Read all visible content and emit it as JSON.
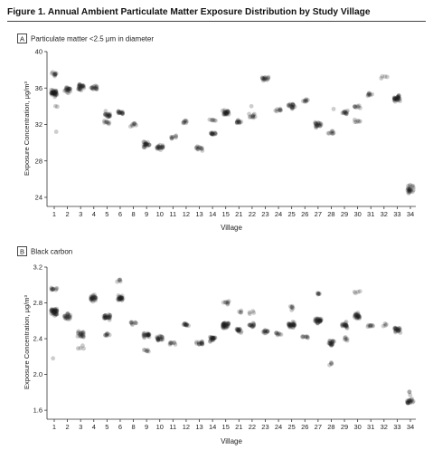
{
  "figure": {
    "title": "Figure 1. Annual Ambient Particulate Matter Exposure Distribution by Study Village"
  },
  "colors": {
    "point": "#1a1a1a",
    "axis": "#333333",
    "panel_badge_border": "#333333"
  },
  "chart_data": [
    {
      "type": "scatter",
      "panel_letter": "A",
      "title": "Particulate matter <2.5 μm in diameter",
      "xlabel": "Village",
      "ylabel": "Exposure Concentration, μg/m³",
      "ylim": [
        23,
        40
      ],
      "yticks": [
        24,
        28,
        32,
        36,
        40
      ],
      "grid": false,
      "categories": [
        "1",
        "2",
        "3",
        "4",
        "5",
        "6",
        "8",
        "9",
        "10",
        "11",
        "12",
        "13",
        "14",
        "15",
        "21",
        "22",
        "23",
        "24",
        "25",
        "26",
        "27",
        "28",
        "29",
        "30",
        "31",
        "32",
        "33",
        "34"
      ],
      "series": [
        {
          "points": [
            [
              {
                "y": 35.5,
                "n": 40
              },
              {
                "y": 37.5,
                "n": 10
              },
              {
                "y": 31.2,
                "n": 1
              },
              {
                "y": 34.0,
                "n": 2
              }
            ],
            [
              {
                "y": 35.8,
                "n": 20
              }
            ],
            [
              {
                "y": 36.1,
                "n": 25
              }
            ],
            [
              {
                "y": 36.0,
                "n": 15
              }
            ],
            [
              {
                "y": 33.0,
                "n": 18
              },
              {
                "y": 32.2,
                "n": 8
              }
            ],
            [
              {
                "y": 33.3,
                "n": 15
              }
            ],
            [
              {
                "y": 32.0,
                "n": 8
              }
            ],
            [
              {
                "y": 29.8,
                "n": 22
              }
            ],
            [
              {
                "y": 29.5,
                "n": 20
              }
            ],
            [
              {
                "y": 30.6,
                "n": 8
              }
            ],
            [
              {
                "y": 32.3,
                "n": 8
              }
            ],
            [
              {
                "y": 29.4,
                "n": 12
              }
            ],
            [
              {
                "y": 31.0,
                "n": 14
              },
              {
                "y": 32.5,
                "n": 6
              }
            ],
            [
              {
                "y": 33.3,
                "n": 25
              }
            ],
            [
              {
                "y": 32.3,
                "n": 12
              }
            ],
            [
              {
                "y": 32.9,
                "n": 10
              },
              {
                "y": 34.0,
                "n": 1
              }
            ],
            [
              {
                "y": 37.0,
                "n": 15
              }
            ],
            [
              {
                "y": 33.6,
                "n": 8
              }
            ],
            [
              {
                "y": 34.0,
                "n": 18
              }
            ],
            [
              {
                "y": 34.6,
                "n": 8
              }
            ],
            [
              {
                "y": 32.0,
                "n": 20
              }
            ],
            [
              {
                "y": 31.1,
                "n": 8
              },
              {
                "y": 33.7,
                "n": 1
              }
            ],
            [
              {
                "y": 33.3,
                "n": 12
              }
            ],
            [
              {
                "y": 33.9,
                "n": 8
              },
              {
                "y": 32.3,
                "n": 6
              }
            ],
            [
              {
                "y": 35.3,
                "n": 8
              }
            ],
            [
              {
                "y": 37.1,
                "n": 4
              }
            ],
            [
              {
                "y": 34.8,
                "n": 30
              }
            ],
            [
              {
                "y": 24.8,
                "n": 20
              },
              {
                "y": 25.3,
                "n": 4
              }
            ]
          ]
        }
      ]
    },
    {
      "type": "scatter",
      "panel_letter": "B",
      "title": "Black carbon",
      "xlabel": "Village",
      "ylabel": "Exposure Concentration, μg/m³",
      "ylim": [
        1.5,
        3.2
      ],
      "yticks": [
        1.6,
        2.0,
        2.4,
        2.8,
        3.2
      ],
      "grid": false,
      "categories": [
        "1",
        "2",
        "3",
        "4",
        "5",
        "6",
        "8",
        "9",
        "10",
        "11",
        "12",
        "13",
        "14",
        "15",
        "21",
        "22",
        "23",
        "24",
        "25",
        "26",
        "27",
        "28",
        "29",
        "30",
        "31",
        "32",
        "33",
        "34"
      ],
      "series": [
        {
          "points": [
            [
              {
                "y": 2.7,
                "n": 40
              },
              {
                "y": 2.95,
                "n": 10
              },
              {
                "y": 2.18,
                "n": 1
              }
            ],
            [
              {
                "y": 2.65,
                "n": 20
              }
            ],
            [
              {
                "y": 2.45,
                "n": 20
              },
              {
                "y": 2.3,
                "n": 4
              }
            ],
            [
              {
                "y": 2.85,
                "n": 25
              }
            ],
            [
              {
                "y": 2.65,
                "n": 25
              },
              {
                "y": 2.45,
                "n": 8
              }
            ],
            [
              {
                "y": 2.85,
                "n": 25
              },
              {
                "y": 3.05,
                "n": 5
              }
            ],
            [
              {
                "y": 2.57,
                "n": 8
              }
            ],
            [
              {
                "y": 2.45,
                "n": 22
              },
              {
                "y": 2.27,
                "n": 6
              }
            ],
            [
              {
                "y": 2.4,
                "n": 20
              }
            ],
            [
              {
                "y": 2.35,
                "n": 8
              }
            ],
            [
              {
                "y": 2.55,
                "n": 12
              }
            ],
            [
              {
                "y": 2.35,
                "n": 14
              }
            ],
            [
              {
                "y": 2.4,
                "n": 22
              }
            ],
            [
              {
                "y": 2.55,
                "n": 35
              },
              {
                "y": 2.8,
                "n": 8
              }
            ],
            [
              {
                "y": 2.5,
                "n": 16
              },
              {
                "y": 2.7,
                "n": 4
              }
            ],
            [
              {
                "y": 2.55,
                "n": 14
              },
              {
                "y": 2.7,
                "n": 4
              }
            ],
            [
              {
                "y": 2.48,
                "n": 12
              }
            ],
            [
              {
                "y": 2.45,
                "n": 8
              }
            ],
            [
              {
                "y": 2.55,
                "n": 30
              },
              {
                "y": 2.75,
                "n": 6
              }
            ],
            [
              {
                "y": 2.42,
                "n": 8
              }
            ],
            [
              {
                "y": 2.6,
                "n": 30
              },
              {
                "y": 2.9,
                "n": 6
              }
            ],
            [
              {
                "y": 2.35,
                "n": 20
              },
              {
                "y": 2.12,
                "n": 4
              }
            ],
            [
              {
                "y": 2.55,
                "n": 20
              },
              {
                "y": 2.4,
                "n": 6
              }
            ],
            [
              {
                "y": 2.65,
                "n": 25
              },
              {
                "y": 2.92,
                "n": 4
              }
            ],
            [
              {
                "y": 2.55,
                "n": 8
              }
            ],
            [
              {
                "y": 2.55,
                "n": 4
              }
            ],
            [
              {
                "y": 2.5,
                "n": 22
              }
            ],
            [
              {
                "y": 1.7,
                "n": 20
              },
              {
                "y": 1.8,
                "n": 3
              }
            ]
          ]
        }
      ]
    }
  ]
}
